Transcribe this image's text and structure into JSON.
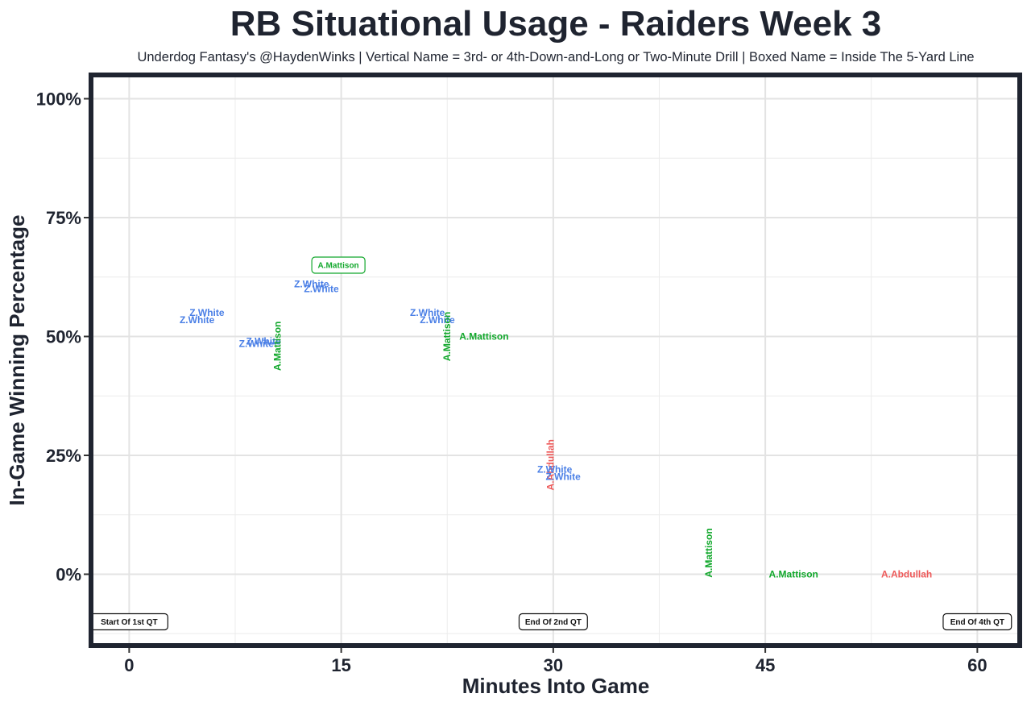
{
  "chart_data": {
    "type": "scatter",
    "title": "RB Situational Usage - Raiders Week 3",
    "subtitle": "Underdog Fantasy's @HaydenWinks | Vertical Name = 3rd- or 4th-Down-and-Long or Two-Minute Drill | Boxed Name = Inside The 5-Yard Line",
    "xlabel": "Minutes Into Game",
    "ylabel": "In-Game Winning Percentage",
    "xlim": [
      -2.7,
      63
    ],
    "ylim": [
      -15,
      105
    ],
    "x_ticks": [
      0,
      15,
      30,
      45,
      60
    ],
    "x_tick_labels": [
      "0",
      "15",
      "30",
      "45",
      "60"
    ],
    "y_ticks": [
      0,
      25,
      50,
      75,
      100
    ],
    "y_tick_labels": [
      "0%",
      "25%",
      "50%",
      "75%",
      "100%"
    ],
    "grid": true,
    "colors": {
      "A.Mattison": "#12a82c",
      "Z.White": "#4a7fe6",
      "A.Abdullah": "#ee5a5a"
    },
    "points": [
      {
        "x": 5.5,
        "y": 55,
        "label": "Z.White",
        "style": "normal"
      },
      {
        "x": 4.8,
        "y": 53.5,
        "label": "Z.White",
        "style": "normal"
      },
      {
        "x": 9.5,
        "y": 49,
        "label": "Z.White",
        "style": "normal"
      },
      {
        "x": 9.0,
        "y": 48.5,
        "label": "Z.White",
        "style": "normal"
      },
      {
        "x": 10.5,
        "y": 48,
        "label": "A.Mattison",
        "style": "vertical"
      },
      {
        "x": 14.8,
        "y": 65,
        "label": "A.Mattison",
        "style": "boxed"
      },
      {
        "x": 12.9,
        "y": 61,
        "label": "Z.White",
        "style": "normal"
      },
      {
        "x": 13.6,
        "y": 60,
        "label": "Z.White",
        "style": "normal"
      },
      {
        "x": 21.1,
        "y": 55,
        "label": "Z.White",
        "style": "normal"
      },
      {
        "x": 21.8,
        "y": 53.5,
        "label": "Z.White",
        "style": "normal"
      },
      {
        "x": 22.5,
        "y": 50,
        "label": "A.Mattison",
        "style": "vertical"
      },
      {
        "x": 25.1,
        "y": 50,
        "label": "A.Mattison",
        "style": "normal"
      },
      {
        "x": 29.8,
        "y": 23,
        "label": "A.Abdullah",
        "style": "vertical"
      },
      {
        "x": 30.1,
        "y": 22,
        "label": "Z.White",
        "style": "normal"
      },
      {
        "x": 30.7,
        "y": 20.5,
        "label": "Z.White",
        "style": "normal"
      },
      {
        "x": 41.0,
        "y": 4.5,
        "label": "A.Mattison",
        "style": "vertical"
      },
      {
        "x": 47.0,
        "y": 0,
        "label": "A.Mattison",
        "style": "normal"
      },
      {
        "x": 55.0,
        "y": 0,
        "label": "A.Abdullah",
        "style": "normal"
      }
    ],
    "annotations": [
      {
        "x": 0,
        "y": -10,
        "text": "Start Of 1st QT"
      },
      {
        "x": 30,
        "y": -10,
        "text": "End Of 2nd QT"
      },
      {
        "x": 60,
        "y": -10,
        "text": "End Of 4th QT"
      }
    ]
  }
}
